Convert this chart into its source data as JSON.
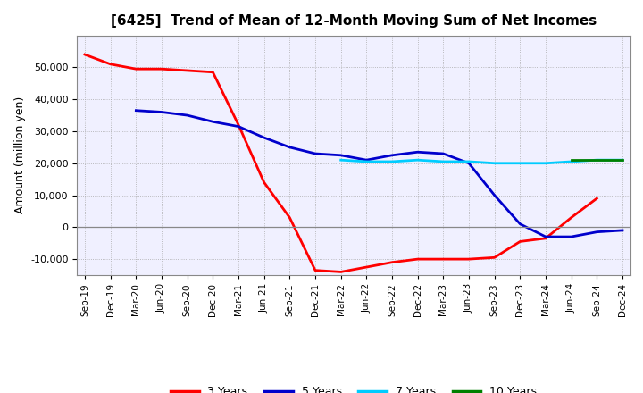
{
  "title": "[6425]  Trend of Mean of 12-Month Moving Sum of Net Incomes",
  "ylabel": "Amount (million yen)",
  "background_color": "#ffffff",
  "plot_bg_color": "#f0f0ff",
  "grid_color": "#aaaaaa",
  "x_labels": [
    "Sep-19",
    "Dec-19",
    "Mar-20",
    "Jun-20",
    "Sep-20",
    "Dec-20",
    "Mar-21",
    "Jun-21",
    "Sep-21",
    "Dec-21",
    "Mar-22",
    "Jun-22",
    "Sep-22",
    "Dec-22",
    "Mar-23",
    "Jun-23",
    "Sep-23",
    "Dec-23",
    "Mar-24",
    "Jun-24",
    "Sep-24",
    "Dec-24"
  ],
  "series": {
    "3 Years": {
      "color": "#ff0000",
      "values": [
        54000,
        51000,
        49500,
        49500,
        49000,
        48500,
        32000,
        14000,
        3000,
        -13500,
        -14000,
        -12500,
        -11000,
        -10000,
        -10000,
        -10000,
        -9500,
        -4500,
        -3500,
        3000,
        9000,
        null
      ]
    },
    "5 Years": {
      "color": "#0000cc",
      "values": [
        null,
        null,
        36500,
        36000,
        35000,
        33000,
        31500,
        28000,
        25000,
        23000,
        22500,
        21000,
        22500,
        23500,
        23000,
        20000,
        10000,
        1000,
        -3000,
        -3000,
        -1500,
        -1000
      ]
    },
    "7 Years": {
      "color": "#00ccff",
      "values": [
        null,
        null,
        null,
        null,
        null,
        null,
        null,
        null,
        null,
        null,
        21000,
        20500,
        20500,
        21000,
        20500,
        20500,
        20000,
        20000,
        20000,
        20500,
        21000,
        21000
      ]
    },
    "10 Years": {
      "color": "#008000",
      "values": [
        null,
        null,
        null,
        null,
        null,
        null,
        null,
        null,
        null,
        null,
        null,
        null,
        null,
        null,
        null,
        null,
        null,
        null,
        null,
        21000,
        21000,
        21000
      ]
    }
  },
  "ylim": [
    -15000,
    60000
  ],
  "yticks": [
    -10000,
    0,
    10000,
    20000,
    30000,
    40000,
    50000
  ],
  "legend_labels": [
    "3 Years",
    "5 Years",
    "7 Years",
    "10 Years"
  ],
  "legend_colors": [
    "#ff0000",
    "#0000cc",
    "#00ccff",
    "#008000"
  ],
  "line_width": 2.0,
  "title_fontsize": 11,
  "ylabel_fontsize": 9,
  "tick_fontsize": 8,
  "xtick_fontsize": 7.5,
  "legend_fontsize": 9
}
